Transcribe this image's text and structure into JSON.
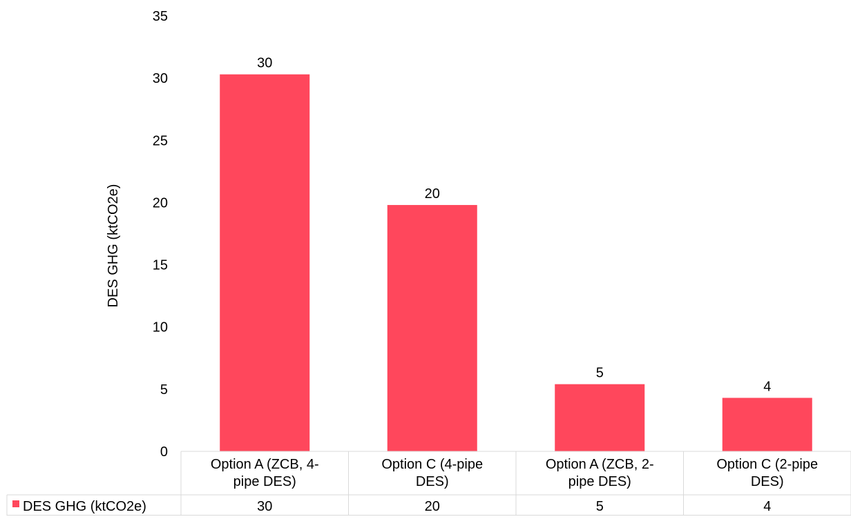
{
  "chart_data": {
    "type": "bar",
    "categories": [
      [
        "Option A (ZCB, 4-",
        "pipe DES)"
      ],
      [
        "Option C (4-pipe",
        "DES)"
      ],
      [
        "Option A (ZCB, 2-",
        "pipe DES)"
      ],
      [
        "Option C (2-pipe",
        "DES)"
      ]
    ],
    "series": [
      {
        "name": "DES GHG (ktCO2e)",
        "values": [
          30.3,
          19.8,
          5.4,
          4.3
        ],
        "labels": [
          "30",
          "20",
          "5",
          "4"
        ],
        "color": "#FF475C"
      }
    ],
    "ylabel": "DES GHG (ktCO2e)",
    "ylim": [
      0,
      35
    ],
    "yticks": [
      "0",
      "5",
      "10",
      "15",
      "20",
      "25",
      "30",
      "35"
    ],
    "grid": false,
    "data_table": {
      "legend_label": "DES GHG (ktCO2e)",
      "values": [
        "30",
        "20",
        "5",
        "4"
      ]
    }
  },
  "colors": {
    "bar": "#FF475C",
    "table_border": "#D9D9D9",
    "text": "#000000"
  }
}
